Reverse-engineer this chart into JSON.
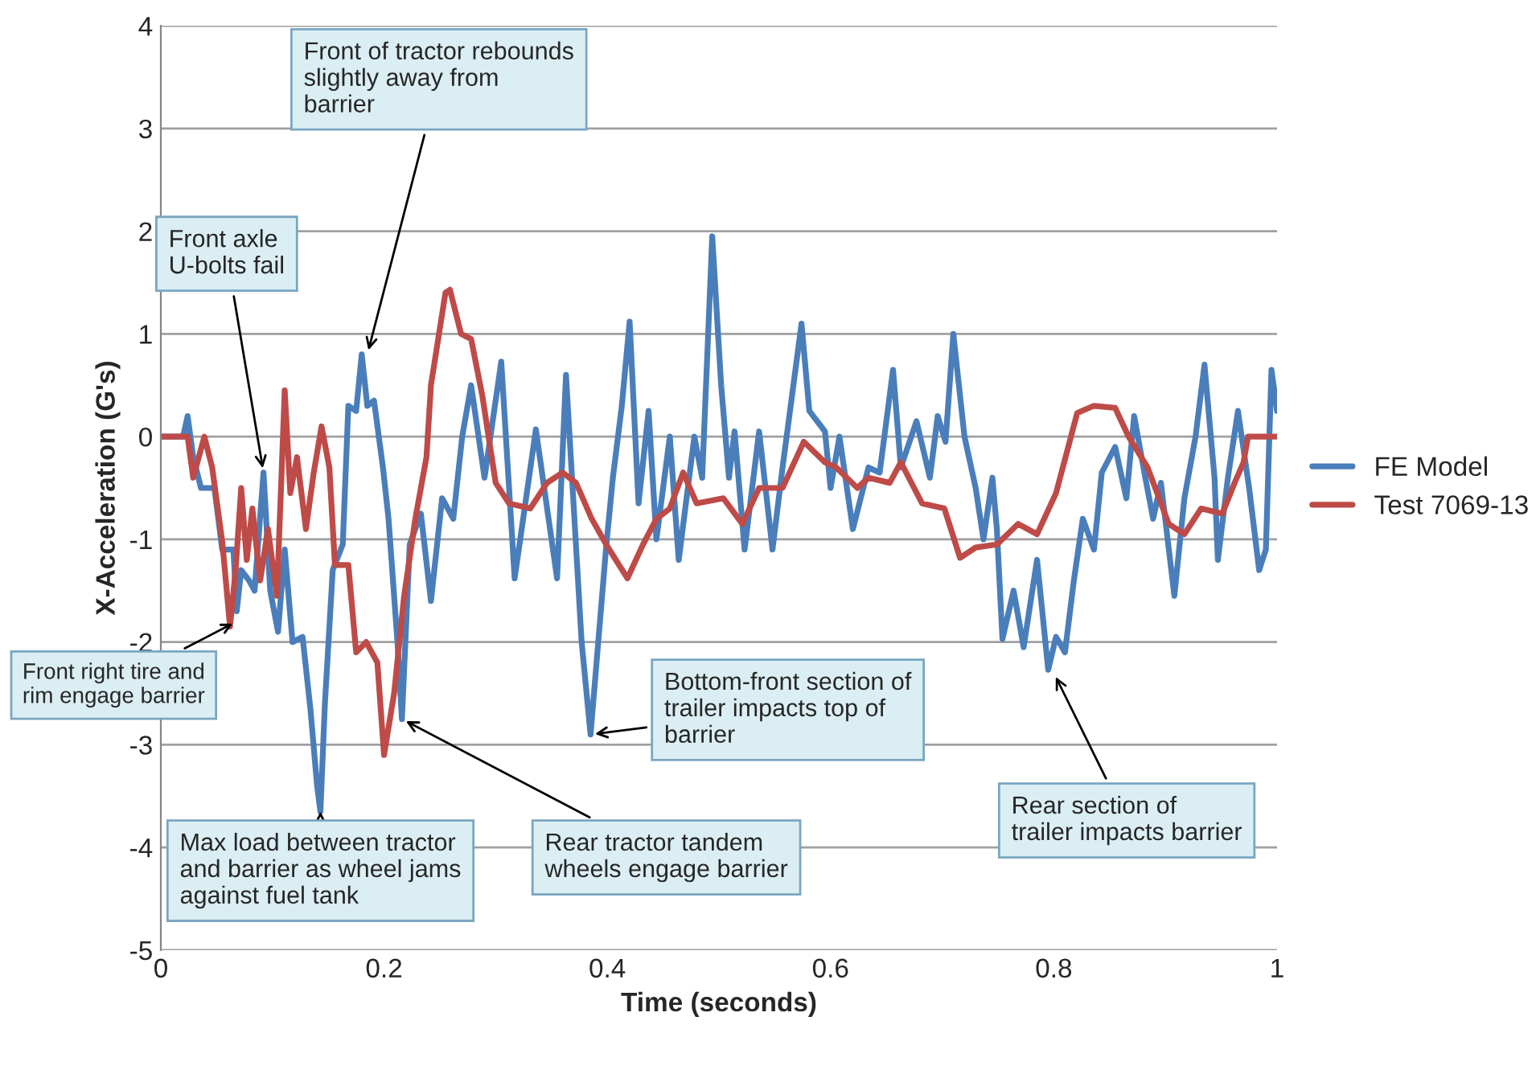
{
  "chart_data": {
    "type": "line",
    "xlabel": "Time (seconds)",
    "ylabel": "X-Acceleration (G's)",
    "xlim": [
      0,
      1
    ],
    "xticks": [
      0,
      {
        "value": 0.2,
        "label": "0.2"
      },
      {
        "value": 0.4,
        "label": "0.4"
      },
      {
        "value": 0.6,
        "label": "0.6"
      },
      {
        "value": 0.8,
        "label": "0.8"
      },
      1
    ],
    "ylim": [
      -5,
      4
    ],
    "yticks": [
      -5,
      -4,
      -3,
      -2,
      -1,
      0,
      1,
      2,
      3,
      4
    ],
    "grid": "y",
    "legend": "right",
    "line_style": "solid",
    "series": [
      {
        "name": "FE Model",
        "color": "#4a7ebb",
        "x": [
          0,
          0.02,
          0.024,
          0.029,
          0.036,
          0.048,
          0.055,
          0.065,
          0.068,
          0.072,
          0.079,
          0.084,
          0.092,
          0.098,
          0.105,
          0.111,
          0.118,
          0.127,
          0.134,
          0.14,
          0.143,
          0.147,
          0.154,
          0.163,
          0.168,
          0.175,
          0.18,
          0.185,
          0.191,
          0.199,
          0.204,
          0.212,
          0.216,
          0.223,
          0.233,
          0.242,
          0.252,
          0.262,
          0.27,
          0.278,
          0.29,
          0.305,
          0.317,
          0.336,
          0.355,
          0.363,
          0.377,
          0.385,
          0.399,
          0.405,
          0.413,
          0.42,
          0.428,
          0.437,
          0.444,
          0.456,
          0.464,
          0.471,
          0.478,
          0.485,
          0.494,
          0.502,
          0.509,
          0.514,
          0.523,
          0.536,
          0.548,
          0.557,
          0.574,
          0.581,
          0.595,
          0.6,
          0.608,
          0.62,
          0.634,
          0.644,
          0.656,
          0.663,
          0.677,
          0.689,
          0.696,
          0.703,
          0.71,
          0.72,
          0.73,
          0.737,
          0.745,
          0.749,
          0.754,
          0.764,
          0.773,
          0.785,
          0.795,
          0.802,
          0.81,
          0.818,
          0.826,
          0.836,
          0.843,
          0.855,
          0.865,
          0.872,
          0.882,
          0.889,
          0.896,
          0.908,
          0.917,
          0.927,
          0.935,
          0.944,
          0.947,
          0.956,
          0.965,
          0.975,
          0.984,
          0.99,
          0.995,
          1
        ],
        "values": [
          0,
          0,
          0.2,
          -0.2,
          -0.5,
          -0.5,
          -1.1,
          -1.1,
          -1.7,
          -1.3,
          -1.4,
          -1.5,
          -0.35,
          -1.5,
          -1.9,
          -1.1,
          -2.0,
          -1.95,
          -2.65,
          -3.4,
          -3.65,
          -2.6,
          -1.3,
          -1.05,
          0.3,
          0.25,
          0.8,
          0.3,
          0.35,
          -0.3,
          -0.8,
          -2.0,
          -2.75,
          -1.05,
          -0.75,
          -1.6,
          -0.6,
          -0.8,
          0.0,
          0.5,
          -0.4,
          0.73,
          -1.38,
          0.07,
          -1.38,
          0.6,
          -2.0,
          -2.9,
          -1.07,
          -0.4,
          0.3,
          1.12,
          -0.65,
          0.25,
          -1.0,
          0.0,
          -1.2,
          -0.6,
          0.0,
          -0.4,
          1.95,
          0.5,
          -0.4,
          0.05,
          -1.1,
          0.05,
          -1.1,
          -0.3,
          1.1,
          0.25,
          0.05,
          -0.5,
          0.0,
          -0.9,
          -0.3,
          -0.35,
          0.65,
          -0.3,
          0.15,
          -0.4,
          0.2,
          -0.05,
          1.0,
          0.0,
          -0.5,
          -1.0,
          -0.4,
          -0.9,
          -1.97,
          -1.5,
          -2.05,
          -1.2,
          -2.27,
          -1.95,
          -2.1,
          -1.4,
          -0.8,
          -1.1,
          -0.35,
          -0.1,
          -0.6,
          0.2,
          -0.4,
          -0.8,
          -0.45,
          -1.55,
          -0.6,
          0.0,
          0.7,
          -0.4,
          -1.2,
          -0.4,
          0.25,
          -0.5,
          -1.3,
          -1.1,
          0.65,
          0.25
        ]
      },
      {
        "name": "Test 7069-13",
        "color": "#be4b48",
        "x": [
          0,
          0.024,
          0.029,
          0.039,
          0.046,
          0.055,
          0.062,
          0.067,
          0.072,
          0.077,
          0.082,
          0.089,
          0.096,
          0.104,
          0.111,
          0.116,
          0.122,
          0.13,
          0.137,
          0.144,
          0.151,
          0.156,
          0.168,
          0.175,
          0.184,
          0.194,
          0.2,
          0.209,
          0.218,
          0.228,
          0.238,
          0.242,
          0.255,
          0.259,
          0.269,
          0.278,
          0.288,
          0.3,
          0.312,
          0.331,
          0.346,
          0.36,
          0.372,
          0.386,
          0.399,
          0.418,
          0.432,
          0.444,
          0.456,
          0.468,
          0.48,
          0.504,
          0.521,
          0.536,
          0.557,
          0.576,
          0.595,
          0.605,
          0.624,
          0.634,
          0.653,
          0.663,
          0.682,
          0.702,
          0.716,
          0.73,
          0.749,
          0.768,
          0.785,
          0.802,
          0.821,
          0.836,
          0.855,
          0.867,
          0.884,
          0.903,
          0.917,
          0.932,
          0.951,
          0.962,
          0.97,
          0.974,
          1
        ],
        "values": [
          0,
          0,
          -0.4,
          0,
          -0.3,
          -1.02,
          -1.85,
          -1.3,
          -0.5,
          -1.2,
          -0.7,
          -1.4,
          -0.9,
          -1.55,
          0.45,
          -0.55,
          -0.2,
          -0.9,
          -0.35,
          0.1,
          -0.3,
          -1.25,
          -1.25,
          -2.1,
          -2.0,
          -2.2,
          -3.1,
          -2.5,
          -1.55,
          -0.8,
          -0.2,
          0.5,
          1.4,
          1.43,
          1.0,
          0.95,
          0.4,
          -0.45,
          -0.65,
          -0.7,
          -0.45,
          -0.35,
          -0.45,
          -0.8,
          -1.05,
          -1.38,
          -1.05,
          -0.8,
          -0.7,
          -0.35,
          -0.65,
          -0.6,
          -0.85,
          -0.5,
          -0.5,
          -0.05,
          -0.25,
          -0.3,
          -0.5,
          -0.4,
          -0.45,
          -0.25,
          -0.65,
          -0.7,
          -1.18,
          -1.08,
          -1.05,
          -0.85,
          -0.95,
          -0.55,
          0.23,
          0.3,
          0.28,
          0.0,
          -0.3,
          -0.85,
          -0.95,
          -0.7,
          -0.75,
          -0.45,
          -0.25,
          0,
          0
        ]
      }
    ],
    "annotations": [
      {
        "text": "Front of tractor rebounds\nslightly away from\nbarrier",
        "x": 0.185,
        "y": 0.8
      },
      {
        "text": "Front axle\nU-bolts fail",
        "x": 0.092,
        "y": -0.35
      },
      {
        "text": "Front right tire and\nrim engage barrier",
        "x": 0.068,
        "y": -1.8
      },
      {
        "text": "Max load between tractor\nand barrier as wheel jams\nagainst fuel tank",
        "x": 0.143,
        "y": -3.65
      },
      {
        "text": "Rear tractor tandem\nwheels engage barrier",
        "x": 0.216,
        "y": -2.75
      },
      {
        "text": "Bottom-front section of\ntrailer impacts top of\nbarrier",
        "x": 0.385,
        "y": -2.9
      },
      {
        "text": "Rear section of\ntrailer impacts barrier",
        "x": 0.8,
        "y": -2.3
      }
    ]
  }
}
